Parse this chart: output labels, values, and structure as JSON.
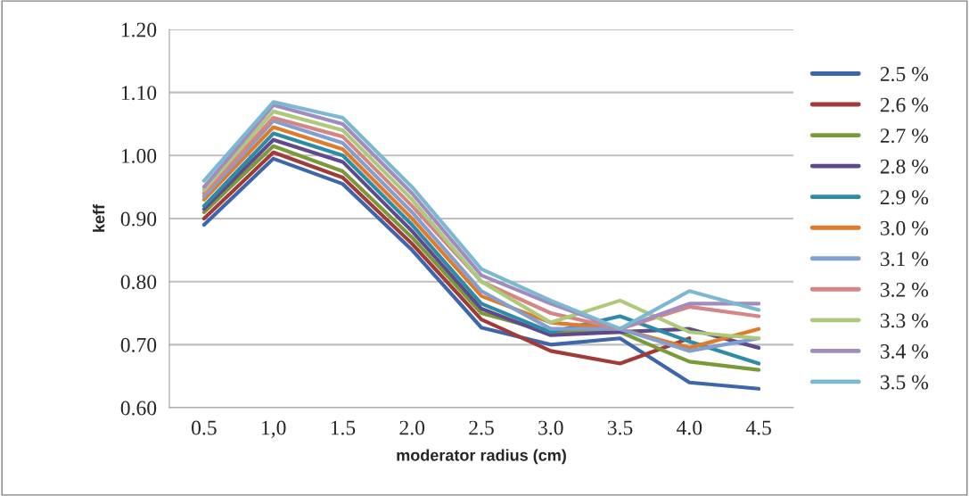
{
  "chart_data": {
    "type": "line",
    "xlabel": "moderator radius (cm)",
    "ylabel": "keff",
    "categories": [
      "0.5",
      "1,0",
      "1.5",
      "2.0",
      "2.5",
      "3.0",
      "3.5",
      "4.0",
      "4.5"
    ],
    "ylim": [
      0.6,
      1.2
    ],
    "yticks": [
      {
        "value": 0.6,
        "label": "0.60"
      },
      {
        "value": 0.7,
        "label": "0.70"
      },
      {
        "value": 0.8,
        "label": "0.80"
      },
      {
        "value": 0.9,
        "label": "0.90"
      },
      {
        "value": 1.0,
        "label": "1.00"
      },
      {
        "value": 1.1,
        "label": "1.10"
      },
      {
        "value": 1.2,
        "label": "1.20"
      }
    ],
    "grid": "y",
    "legend": "right",
    "marker": "none",
    "line_style": "solid",
    "series": [
      {
        "name": "2.5 %",
        "color": "#3d67a8",
        "values": [
          0.89,
          0.995,
          0.955,
          0.85,
          0.727,
          0.7,
          0.71,
          0.64,
          0.63
        ]
      },
      {
        "name": "2.6 %",
        "color": "#a33a3a",
        "values": [
          0.9,
          1.005,
          0.965,
          0.86,
          0.74,
          0.69,
          0.67,
          0.71,
          null
        ]
      },
      {
        "name": "2.7 %",
        "color": "#7a9a3a",
        "values": [
          0.91,
          1.015,
          0.975,
          0.87,
          0.75,
          0.72,
          0.72,
          0.673,
          0.66
        ]
      },
      {
        "name": "2.8 %",
        "color": "#5f4a8b",
        "values": [
          0.915,
          1.025,
          0.99,
          0.88,
          0.757,
          0.715,
          0.72,
          0.725,
          0.695
        ]
      },
      {
        "name": "2.9 %",
        "color": "#2e8ba6",
        "values": [
          0.92,
          1.035,
          1.0,
          0.89,
          0.765,
          0.72,
          0.745,
          0.705,
          0.67
        ]
      },
      {
        "name": "3.0 %",
        "color": "#e07b2a",
        "values": [
          0.93,
          1.045,
          1.01,
          0.9,
          0.777,
          0.735,
          0.725,
          0.695,
          0.725
        ]
      },
      {
        "name": "3.1 %",
        "color": "#829fd1",
        "values": [
          0.935,
          1.055,
          1.02,
          0.91,
          0.785,
          0.725,
          0.725,
          0.69,
          0.71
        ]
      },
      {
        "name": "3.2 %",
        "color": "#d58585",
        "values": [
          0.94,
          1.06,
          1.03,
          0.92,
          0.8,
          0.75,
          0.725,
          0.76,
          0.745
        ]
      },
      {
        "name": "3.3 %",
        "color": "#afc97a",
        "values": [
          0.945,
          1.07,
          1.04,
          0.93,
          0.8,
          0.735,
          0.77,
          0.72,
          0.71
        ]
      },
      {
        "name": "3.4 %",
        "color": "#a08cbe",
        "values": [
          0.95,
          1.08,
          1.05,
          0.94,
          0.81,
          0.765,
          0.725,
          0.765,
          0.765
        ]
      },
      {
        "name": "3.5 %",
        "color": "#7cb8cf",
        "values": [
          0.96,
          1.085,
          1.06,
          0.95,
          0.82,
          0.77,
          0.725,
          0.785,
          0.755
        ]
      }
    ]
  }
}
